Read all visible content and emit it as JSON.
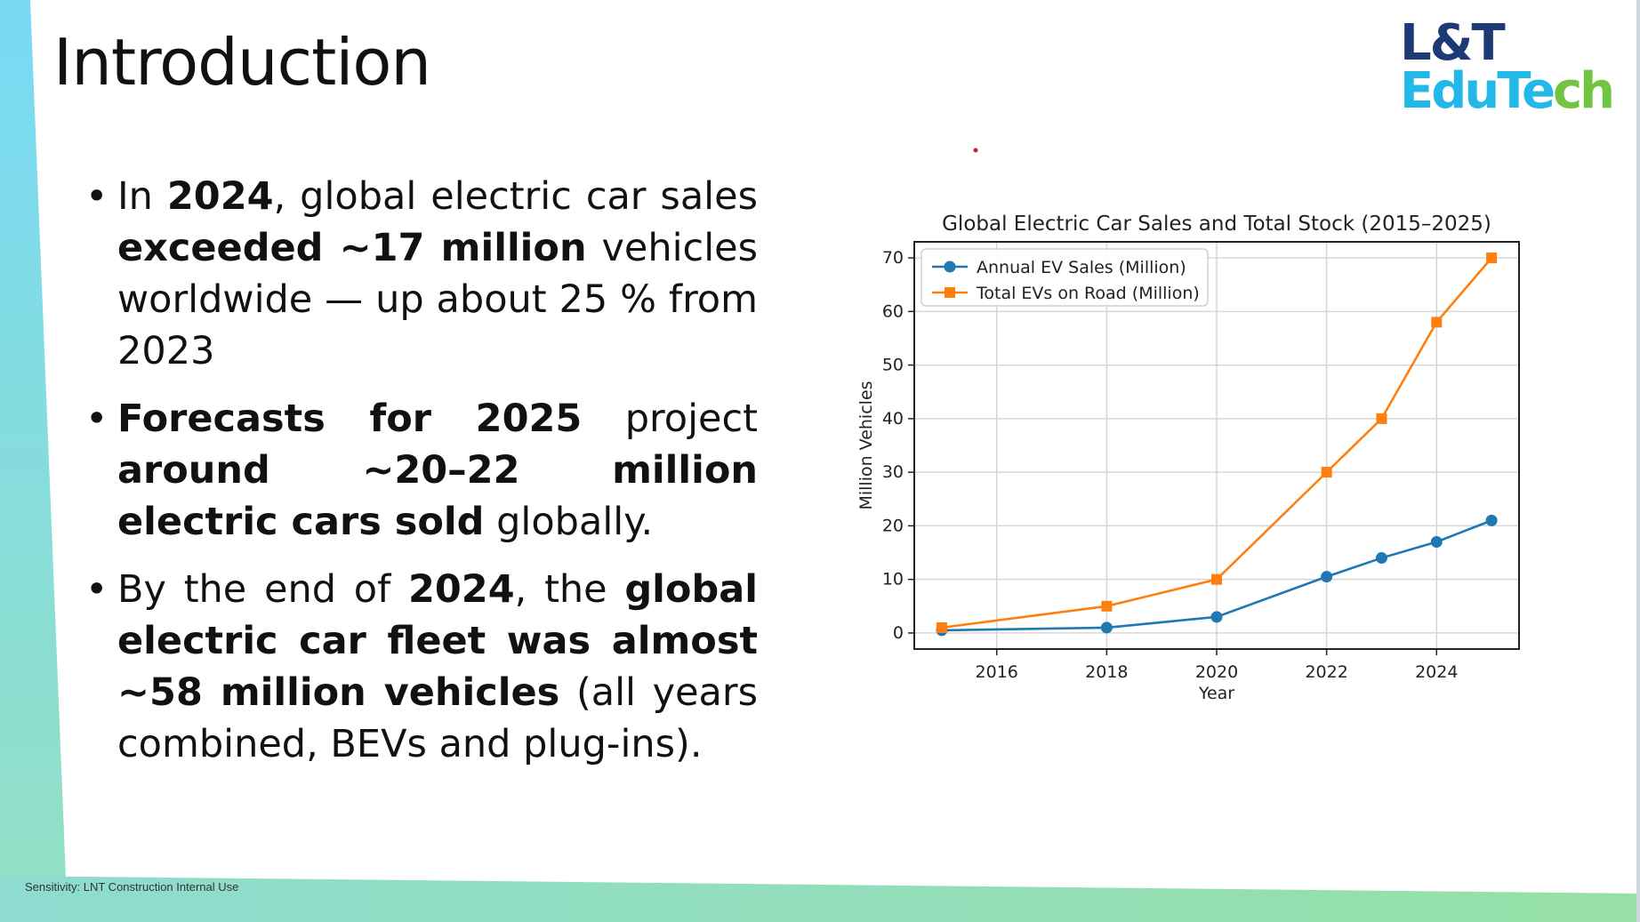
{
  "slide": {
    "title": "Introduction",
    "logo": {
      "line1": "L&T",
      "line2_a": "EduTe",
      "line2_b": "ch"
    },
    "bullets": [
      {
        "segments": [
          {
            "text": "In ",
            "bold": false
          },
          {
            "text": "2024",
            "bold": true
          },
          {
            "text": ", global electric car sales ",
            "bold": false
          },
          {
            "text": "exceeded ~17 million",
            "bold": true
          },
          {
            "text": " vehicles worldwide — up about 25 % from 2023",
            "bold": false
          }
        ]
      },
      {
        "segments": [
          {
            "text": "Forecasts for 2025",
            "bold": true
          },
          {
            "text": " project ",
            "bold": false
          },
          {
            "text": "around ~20–22 million electric cars sold",
            "bold": true
          },
          {
            "text": " globally.",
            "bold": false
          }
        ]
      },
      {
        "segments": [
          {
            "text": "By the end of ",
            "bold": false
          },
          {
            "text": "2024",
            "bold": true
          },
          {
            "text": ", the ",
            "bold": false
          },
          {
            "text": "global electric car fleet was almost ~58 million vehicles",
            "bold": true
          },
          {
            "text": " (all years combined, BEVs and plug-ins).",
            "bold": false
          }
        ]
      }
    ],
    "footer": "Sensitivity: LNT Construction Internal Use",
    "colors": {
      "accent_cyan": "#7fd8f0",
      "accent_green": "#92deb0",
      "logo_navy": "#1e3a74",
      "logo_blue": "#23b8e8",
      "logo_green": "#72c542"
    }
  },
  "chart_data": {
    "type": "line",
    "title": "Global Electric Car Sales and Total Stock (2015–2025)",
    "xlabel": "Year",
    "ylabel": "Million Vehicles",
    "xlim": [
      2014.5,
      2025.5
    ],
    "ylim": [
      -3,
      73
    ],
    "xticks": [
      2016,
      2018,
      2020,
      2022,
      2024
    ],
    "yticks": [
      0,
      10,
      20,
      30,
      40,
      50,
      60,
      70
    ],
    "grid": true,
    "legend": "top-left",
    "series": [
      {
        "name": "Annual EV Sales (Million)",
        "color": "#1f77b4",
        "marker": "circle",
        "x": [
          2015,
          2018,
          2020,
          2022,
          2023,
          2024,
          2025
        ],
        "y": [
          0.5,
          1,
          3,
          10.5,
          14,
          17,
          21
        ]
      },
      {
        "name": "Total EVs on Road (Million)",
        "color": "#ff7f0e",
        "marker": "square",
        "x": [
          2015,
          2018,
          2020,
          2022,
          2023,
          2024,
          2025
        ],
        "y": [
          1,
          5,
          10,
          30,
          40,
          58,
          70
        ]
      }
    ]
  }
}
